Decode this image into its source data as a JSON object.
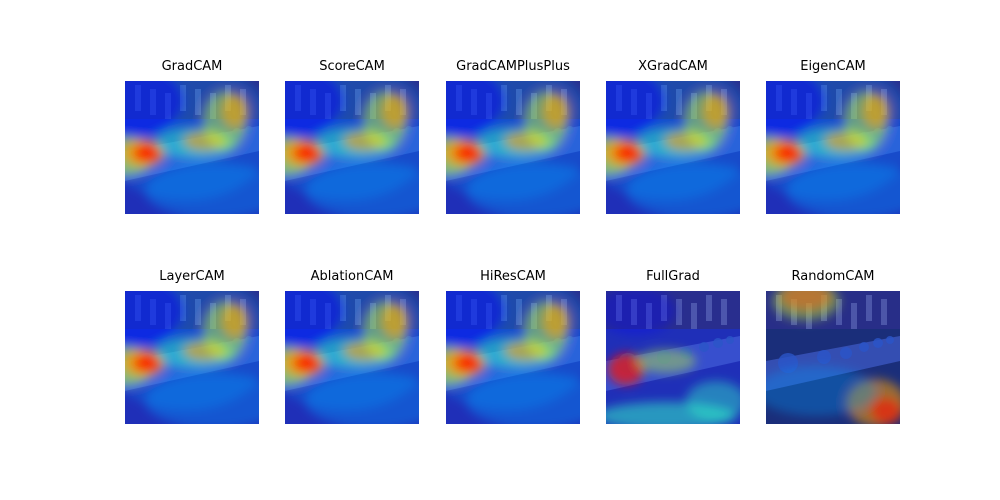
{
  "figure": {
    "panels": [
      {
        "title": "GradCAM",
        "heat": "gradcam",
        "colors": {}
      },
      {
        "title": "ScoreCAM",
        "heat": "scorecam",
        "colors": {}
      },
      {
        "title": "GradCAMPlusPlus",
        "heat": "gradcampp",
        "colors": {}
      },
      {
        "title": "XGradCAM",
        "heat": "xgradcam",
        "colors": {}
      },
      {
        "title": "EigenCAM",
        "heat": "eigencam",
        "colors": {}
      },
      {
        "title": "LayerCAM",
        "heat": "layercam",
        "colors": {}
      },
      {
        "title": "AblationCAM",
        "heat": "ablationcam",
        "colors": {}
      },
      {
        "title": "HiResCAM",
        "heat": "hirescam",
        "colors": {}
      },
      {
        "title": "FullGrad",
        "heat": "fullgrad",
        "colors": {}
      },
      {
        "title": "RandomCAM",
        "heat": "randomcam",
        "colors": {}
      }
    ],
    "colormap": [
      "#00007f",
      "#0000ff",
      "#00a0ff",
      "#30ffc8",
      "#c8ff30",
      "#ffa000",
      "#ff1000",
      "#7f0000"
    ]
  }
}
